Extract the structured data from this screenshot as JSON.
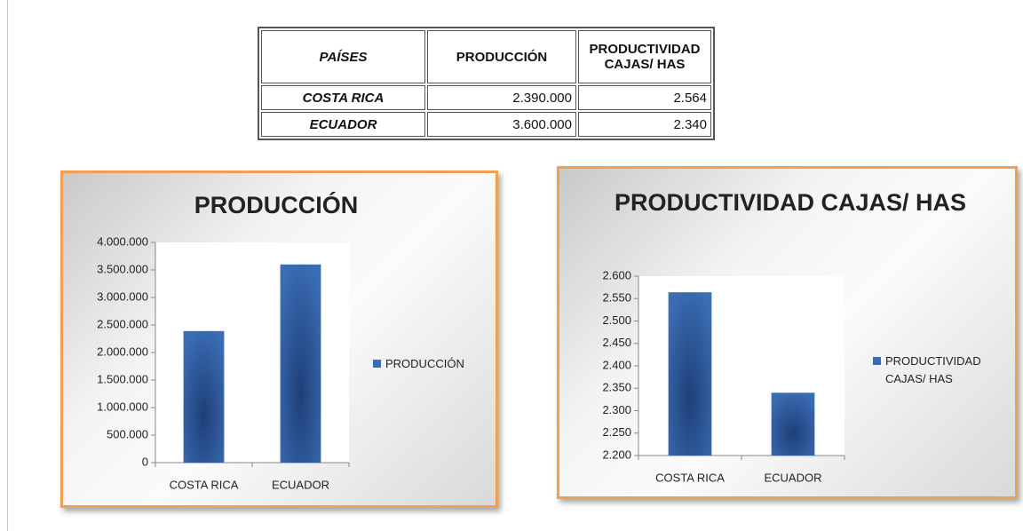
{
  "table": {
    "header": [
      "PAÍSES",
      "PRODUCCIÓN",
      "PRODUCTIVIDAD CAJAS/ HAS"
    ],
    "rows": [
      [
        "COSTA RICA",
        "2.390.000",
        "2.564"
      ],
      [
        "ECUADOR",
        "3.600.000",
        "2.340"
      ]
    ]
  },
  "chart_data": [
    {
      "type": "bar",
      "title": "PRODUCCIÓN",
      "categories": [
        "COSTA RICA",
        "ECUADOR"
      ],
      "series": [
        {
          "name": "PRODUCCIÓN",
          "color": "#3b6db4",
          "values": [
            2390000,
            3600000
          ]
        }
      ],
      "ylim": [
        0,
        4000000
      ],
      "yticks": [
        0,
        {
          "value": 500000,
          "label": "500.000"
        },
        {
          "value": 1000000,
          "label": "1.000.000"
        },
        {
          "value": 1500000,
          "label": "1.500.000"
        },
        {
          "value": 2000000,
          "label": "2.000.000"
        },
        {
          "value": 2500000,
          "label": "2.500.000"
        },
        {
          "value": 3000000,
          "label": "3.000.000"
        },
        {
          "value": 3500000,
          "label": "3.500.000"
        },
        {
          "value": 4000000,
          "label": "4.000.000"
        }
      ],
      "legend": "right"
    },
    {
      "type": "bar",
      "title": "PRODUCTIVIDAD CAJAS/ HAS",
      "categories": [
        "COSTA RICA",
        "ECUADOR"
      ],
      "series": [
        {
          "name": "PRODUCTIVIDAD CAJAS/ HAS",
          "color": "#3b6db4",
          "values": [
            2564,
            2340
          ]
        }
      ],
      "ylim": [
        2200,
        2600
      ],
      "yticks": [
        {
          "value": 2200,
          "label": "2.200"
        },
        {
          "value": 2250,
          "label": "2.250"
        },
        {
          "value": 2300,
          "label": "2.300"
        },
        {
          "value": 2350,
          "label": "2.350"
        },
        {
          "value": 2400,
          "label": "2.400"
        },
        {
          "value": 2450,
          "label": "2.450"
        },
        {
          "value": 2500,
          "label": "2.500"
        },
        {
          "value": 2550,
          "label": "2.550"
        },
        {
          "value": 2600,
          "label": "2.600"
        }
      ],
      "legend": "right"
    }
  ]
}
